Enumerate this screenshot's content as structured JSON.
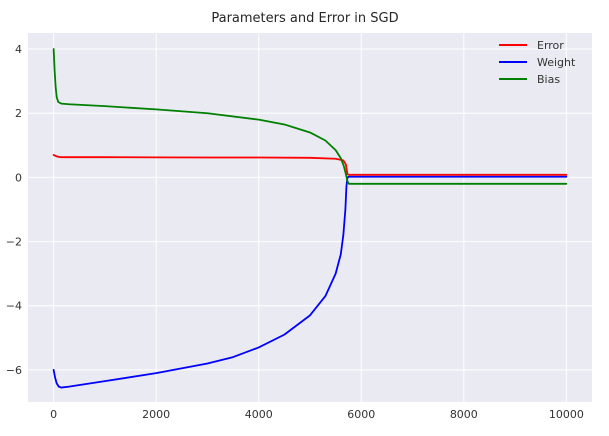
{
  "chart_data": {
    "type": "line",
    "title": "Parameters and Error in SGD",
    "xlabel": "",
    "ylabel": "",
    "xlim": [
      -500,
      10500
    ],
    "ylim": [
      -7,
      4.5
    ],
    "x_ticks": [
      0,
      2000,
      4000,
      6000,
      8000,
      10000
    ],
    "y_ticks": [
      -6,
      -4,
      -2,
      0,
      2,
      4
    ],
    "grid": true,
    "legend_position": "top-right",
    "series": [
      {
        "name": "Error",
        "color": "#ff0000",
        "points": [
          [
            0,
            0.7
          ],
          [
            50,
            0.66
          ],
          [
            100,
            0.64
          ],
          [
            150,
            0.63
          ],
          [
            300,
            0.63
          ],
          [
            1000,
            0.63
          ],
          [
            2000,
            0.625
          ],
          [
            3000,
            0.62
          ],
          [
            4000,
            0.62
          ],
          [
            5000,
            0.61
          ],
          [
            5500,
            0.58
          ],
          [
            5650,
            0.53
          ],
          [
            5700,
            0.4
          ],
          [
            5730,
            0.1
          ],
          [
            5760,
            0.08
          ],
          [
            6000,
            0.08
          ],
          [
            8000,
            0.08
          ],
          [
            10000,
            0.08
          ]
        ]
      },
      {
        "name": "Weight",
        "color": "#0000ff",
        "points": [
          [
            0,
            -6.0
          ],
          [
            30,
            -6.25
          ],
          [
            60,
            -6.42
          ],
          [
            100,
            -6.52
          ],
          [
            150,
            -6.55
          ],
          [
            300,
            -6.52
          ],
          [
            1000,
            -6.35
          ],
          [
            2000,
            -6.1
          ],
          [
            3000,
            -5.8
          ],
          [
            3500,
            -5.6
          ],
          [
            4000,
            -5.3
          ],
          [
            4500,
            -4.9
          ],
          [
            5000,
            -4.3
          ],
          [
            5300,
            -3.7
          ],
          [
            5500,
            -3.0
          ],
          [
            5600,
            -2.4
          ],
          [
            5650,
            -1.8
          ],
          [
            5690,
            -1.0
          ],
          [
            5710,
            -0.3
          ],
          [
            5730,
            0.0
          ],
          [
            5760,
            0.02
          ],
          [
            6000,
            0.02
          ],
          [
            8000,
            0.02
          ],
          [
            10000,
            0.02
          ]
        ]
      },
      {
        "name": "Bias",
        "color": "#008000",
        "points": [
          [
            0,
            4.0
          ],
          [
            20,
            3.3
          ],
          [
            40,
            2.8
          ],
          [
            60,
            2.5
          ],
          [
            90,
            2.35
          ],
          [
            150,
            2.3
          ],
          [
            300,
            2.28
          ],
          [
            1000,
            2.22
          ],
          [
            2000,
            2.12
          ],
          [
            3000,
            2.0
          ],
          [
            4000,
            1.8
          ],
          [
            4500,
            1.65
          ],
          [
            5000,
            1.4
          ],
          [
            5300,
            1.15
          ],
          [
            5500,
            0.85
          ],
          [
            5600,
            0.6
          ],
          [
            5660,
            0.35
          ],
          [
            5700,
            0.1
          ],
          [
            5730,
            -0.12
          ],
          [
            5760,
            -0.2
          ],
          [
            6000,
            -0.2
          ],
          [
            8000,
            -0.2
          ],
          [
            10000,
            -0.2
          ]
        ]
      }
    ]
  }
}
